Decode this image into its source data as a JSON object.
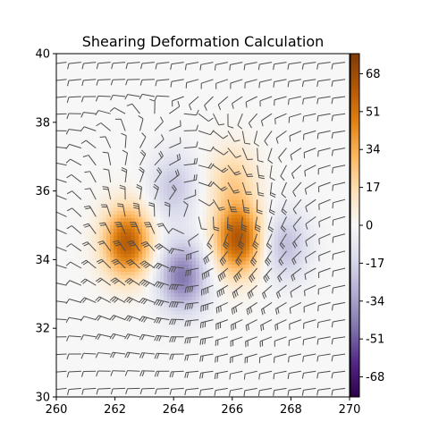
{
  "chart_data": {
    "type": "heatmap",
    "title": "Shearing Deformation Calculation",
    "xlabel": "",
    "ylabel": "",
    "xlim": [
      260,
      270
    ],
    "ylim": [
      30,
      40
    ],
    "x_ticks": [
      "260",
      "262",
      "264",
      "266",
      "268",
      "270"
    ],
    "y_ticks": [
      "30",
      "32",
      "34",
      "36",
      "38",
      "40"
    ],
    "colorbar": {
      "colormap": "PuOr_r",
      "range": [
        -77,
        77
      ],
      "ticks": [
        "-68",
        "-51",
        "-34",
        "-17",
        "0",
        "17",
        "34",
        "51",
        "68"
      ]
    },
    "field_features": [
      {
        "kind": "positive",
        "x": 262.4,
        "y": 34.5,
        "value": 60
      },
      {
        "kind": "positive",
        "x": 266.2,
        "y": 34.6,
        "value": 62
      },
      {
        "kind": "positive",
        "x": 266.0,
        "y": 36.3,
        "value": 20
      },
      {
        "kind": "negative",
        "x": 264.3,
        "y": 33.5,
        "value": -45
      },
      {
        "kind": "negative",
        "x": 264.0,
        "y": 36.1,
        "value": -22
      },
      {
        "kind": "negative",
        "x": 267.8,
        "y": 34.4,
        "value": -25
      }
    ],
    "overlay": "wind barbs",
    "colors": {
      "positive": "#b35806",
      "negative": "#542788",
      "neutral": "#f7f7f7",
      "barbs": "#4d4d4d"
    }
  }
}
